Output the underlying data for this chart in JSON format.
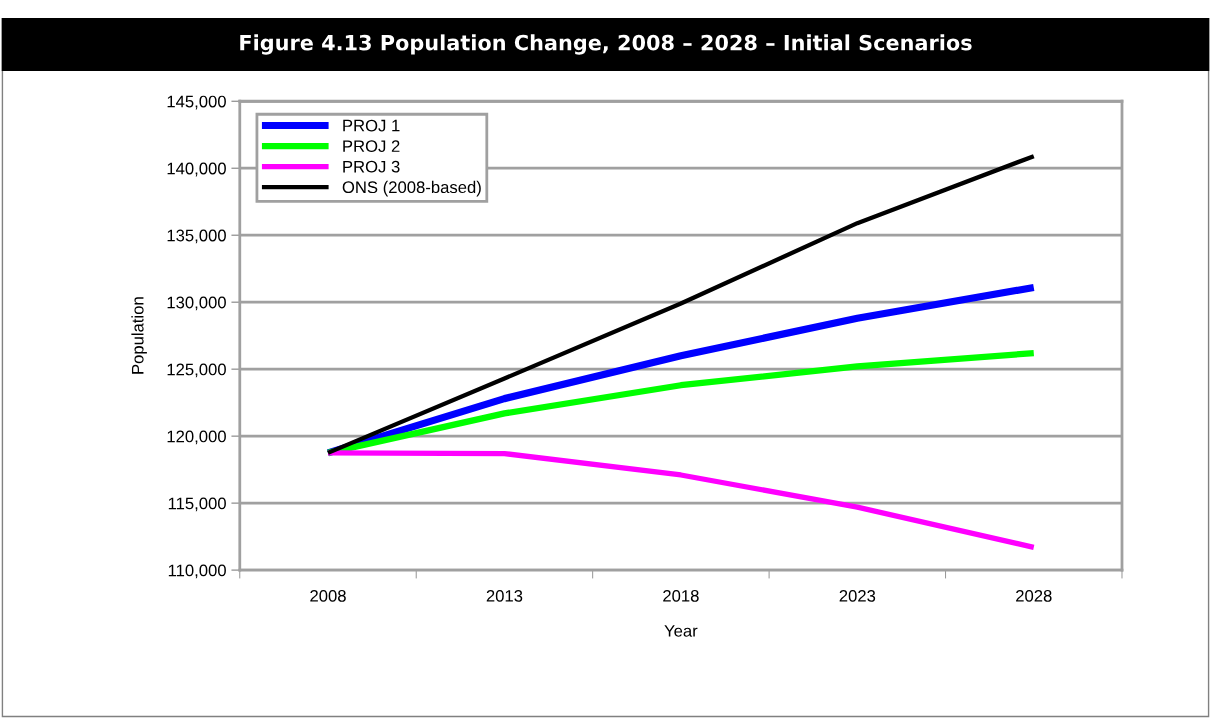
{
  "chart_data": {
    "type": "line",
    "title": "Figure 4.13 Population Change, 2008 – 2028 – Initial Scenarios",
    "xlabel": "Year",
    "ylabel": "Population",
    "categories": [
      "2008",
      "2013",
      "2018",
      "2023",
      "2028"
    ],
    "series": [
      {
        "name": "PROJ 1",
        "color": "#0000ff",
        "values": [
          118750,
          122800,
          126000,
          128800,
          131100
        ]
      },
      {
        "name": "PROJ 2",
        "color": "#00ff00",
        "values": [
          118750,
          121700,
          123800,
          125200,
          126200
        ]
      },
      {
        "name": "PROJ 3",
        "color": "#ff00ff",
        "values": [
          118750,
          118700,
          117100,
          114700,
          111700
        ]
      },
      {
        "name": "ONS (2008-based)",
        "color": "#000000",
        "values": [
          118750,
          124300,
          129900,
          135900,
          140900
        ]
      }
    ],
    "ylim": [
      110000,
      145000
    ],
    "yticks": [
      {
        "value": 110000,
        "label": "110,000"
      },
      {
        "value": 115000,
        "label": "115,000"
      },
      {
        "value": 120000,
        "label": "120,000"
      },
      {
        "value": 125000,
        "label": "125,000"
      },
      {
        "value": 130000,
        "label": "130,000"
      },
      {
        "value": 135000,
        "label": "135,000"
      },
      {
        "value": 140000,
        "label": "140,000"
      },
      {
        "value": 145000,
        "label": "145,000"
      }
    ],
    "grid": "y",
    "legend": "top left",
    "marker": "none",
    "line_style": "solid"
  }
}
